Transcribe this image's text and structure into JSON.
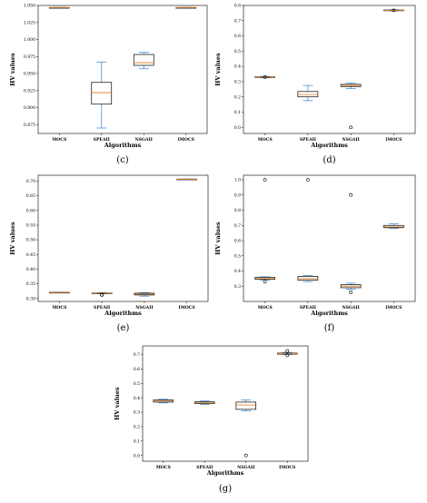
{
  "colors": {
    "box": "#000000",
    "whisker": "#4a90d9",
    "median": "#e08a2e",
    "frame": "#000000"
  },
  "chart_data": [
    {
      "panel": "c",
      "type": "box",
      "caption": "(c)",
      "categories": [
        "MOCS",
        "SPEAII",
        "NSGAII",
        "IMOCS"
      ],
      "xlabel": "Algorithms",
      "ylabel": "HV values",
      "ylim": [
        0.862,
        1.05
      ],
      "yticks": [
        {
          "v": 0.875,
          "t": "0.875"
        },
        {
          "v": 0.9,
          "t": "0.900"
        },
        {
          "v": 0.925,
          "t": "0.925"
        },
        {
          "v": 0.95,
          "t": "0.950"
        },
        {
          "v": 0.975,
          "t": "0.975"
        },
        {
          "v": 1.0,
          "t": "1.000"
        },
        {
          "v": 1.025,
          "t": "1.025"
        },
        {
          "v": 1.05,
          "t": "1.050"
        }
      ],
      "boxes": [
        {
          "min": 1.047,
          "q1": 1.047,
          "median": 1.047,
          "q3": 1.047,
          "max": 1.047,
          "outliers": []
        },
        {
          "min": 0.87,
          "q1": 0.905,
          "median": 0.922,
          "q3": 0.937,
          "max": 0.967,
          "outliers": []
        },
        {
          "min": 0.957,
          "q1": 0.962,
          "median": 0.966,
          "q3": 0.978,
          "max": 0.981,
          "outliers": []
        },
        {
          "min": 1.047,
          "q1": 1.047,
          "median": 1.047,
          "q3": 1.047,
          "max": 1.047,
          "outliers": []
        }
      ]
    },
    {
      "panel": "d",
      "type": "box",
      "caption": "(d)",
      "categories": [
        "MOCS",
        "SPEAII",
        "NSGAII",
        "IMOCS"
      ],
      "xlabel": "Algorithms",
      "ylabel": "HV values",
      "ylim": [
        -0.04,
        0.8
      ],
      "yticks": [
        {
          "v": 0.0,
          "t": "0.0"
        },
        {
          "v": 0.1,
          "t": "0.1"
        },
        {
          "v": 0.2,
          "t": "0.2"
        },
        {
          "v": 0.3,
          "t": "0.3"
        },
        {
          "v": 0.4,
          "t": "0.4"
        },
        {
          "v": 0.5,
          "t": "0.5"
        },
        {
          "v": 0.6,
          "t": "0.6"
        },
        {
          "v": 0.7,
          "t": "0.7"
        },
        {
          "v": 0.8,
          "t": "0.8"
        }
      ],
      "boxes": [
        {
          "min": 0.325,
          "q1": 0.328,
          "median": 0.33,
          "q3": 0.332,
          "max": 0.335,
          "outliers": [
            0.33
          ]
        },
        {
          "min": 0.175,
          "q1": 0.2,
          "median": 0.215,
          "q3": 0.235,
          "max": 0.275,
          "outliers": []
        },
        {
          "min": 0.255,
          "q1": 0.268,
          "median": 0.275,
          "q3": 0.282,
          "max": 0.29,
          "outliers": [
            0.0
          ]
        },
        {
          "min": 0.765,
          "q1": 0.767,
          "median": 0.768,
          "q3": 0.77,
          "max": 0.772,
          "outliers": [
            0.768
          ]
        }
      ]
    },
    {
      "panel": "e",
      "type": "box",
      "caption": "(e)",
      "categories": [
        "MOCS",
        "SPEAII",
        "NSGAII",
        "IMOCS"
      ],
      "xlabel": "Algorithms",
      "ylabel": "HV values",
      "ylim": [
        0.29,
        0.72
      ],
      "yticks": [
        {
          "v": 0.3,
          "t": "0.30"
        },
        {
          "v": 0.35,
          "t": "0.35"
        },
        {
          "v": 0.4,
          "t": "0.40"
        },
        {
          "v": 0.45,
          "t": "0.45"
        },
        {
          "v": 0.5,
          "t": "0.50"
        },
        {
          "v": 0.55,
          "t": "0.55"
        },
        {
          "v": 0.6,
          "t": "0.60"
        },
        {
          "v": 0.65,
          "t": "0.65"
        },
        {
          "v": 0.7,
          "t": "0.70"
        }
      ],
      "boxes": [
        {
          "min": 0.32,
          "q1": 0.32,
          "median": 0.32,
          "q3": 0.321,
          "max": 0.321,
          "outliers": []
        },
        {
          "min": 0.316,
          "q1": 0.317,
          "median": 0.318,
          "q3": 0.319,
          "max": 0.32,
          "outliers": [
            0.313,
            0.312
          ]
        },
        {
          "min": 0.308,
          "q1": 0.312,
          "median": 0.315,
          "q3": 0.318,
          "max": 0.32,
          "outliers": []
        },
        {
          "min": 0.706,
          "q1": 0.706,
          "median": 0.706,
          "q3": 0.707,
          "max": 0.707,
          "outliers": []
        }
      ]
    },
    {
      "panel": "f",
      "type": "box",
      "caption": "(f)",
      "categories": [
        "MOCS",
        "SPEAII",
        "NSGAII",
        "IMOCS"
      ],
      "xlabel": "Algorithms",
      "ylabel": "HV values",
      "ylim": [
        0.2,
        1.03
      ],
      "yticks": [
        {
          "v": 0.3,
          "t": "0.3"
        },
        {
          "v": 0.4,
          "t": "0.4"
        },
        {
          "v": 0.5,
          "t": "0.5"
        },
        {
          "v": 0.6,
          "t": "0.6"
        },
        {
          "v": 0.7,
          "t": "0.7"
        },
        {
          "v": 0.8,
          "t": "0.8"
        },
        {
          "v": 0.9,
          "t": "0.9"
        },
        {
          "v": 1.0,
          "t": "1.0"
        }
      ],
      "boxes": [
        {
          "min": 0.34,
          "q1": 0.345,
          "median": 0.35,
          "q3": 0.358,
          "max": 0.362,
          "outliers": [
            1.0,
            0.33
          ]
        },
        {
          "min": 0.33,
          "q1": 0.34,
          "median": 0.35,
          "q3": 0.365,
          "max": 0.37,
          "outliers": [
            1.0
          ]
        },
        {
          "min": 0.28,
          "q1": 0.29,
          "median": 0.3,
          "q3": 0.31,
          "max": 0.32,
          "outliers": [
            0.9,
            0.26
          ]
        },
        {
          "min": 0.68,
          "q1": 0.685,
          "median": 0.69,
          "q3": 0.7,
          "max": 0.71,
          "outliers": []
        }
      ]
    },
    {
      "panel": "g",
      "type": "box",
      "caption": "(g)",
      "categories": [
        "MOCS",
        "SPEAII",
        "NSGAII",
        "IMOCS"
      ],
      "xlabel": "Algorithms",
      "ylabel": "HV values",
      "ylim": [
        -0.04,
        0.76
      ],
      "yticks": [
        {
          "v": 0.0,
          "t": "0.0"
        },
        {
          "v": 0.1,
          "t": "0.1"
        },
        {
          "v": 0.2,
          "t": "0.2"
        },
        {
          "v": 0.3,
          "t": "0.3"
        },
        {
          "v": 0.4,
          "t": "0.4"
        },
        {
          "v": 0.5,
          "t": "0.5"
        },
        {
          "v": 0.6,
          "t": "0.6"
        },
        {
          "v": 0.7,
          "t": "0.7"
        }
      ],
      "boxes": [
        {
          "min": 0.365,
          "q1": 0.37,
          "median": 0.378,
          "q3": 0.385,
          "max": 0.39,
          "outliers": []
        },
        {
          "min": 0.355,
          "q1": 0.36,
          "median": 0.365,
          "q3": 0.372,
          "max": 0.378,
          "outliers": []
        },
        {
          "min": 0.31,
          "q1": 0.32,
          "median": 0.35,
          "q3": 0.37,
          "max": 0.385,
          "outliers": [
            0.0
          ]
        },
        {
          "min": 0.7,
          "q1": 0.703,
          "median": 0.706,
          "q3": 0.71,
          "max": 0.715,
          "outliers": [
            0.725,
            0.695
          ]
        }
      ]
    }
  ]
}
